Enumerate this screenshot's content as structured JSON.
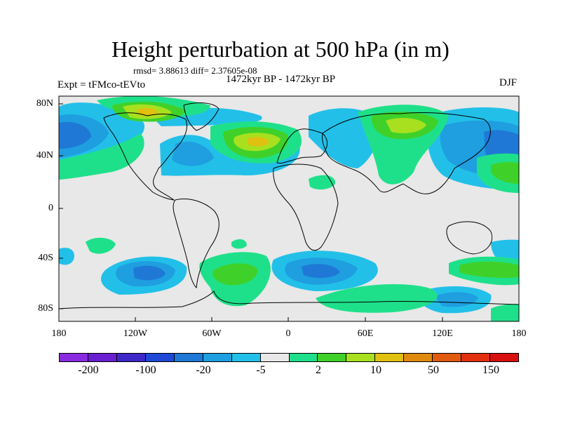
{
  "map": {
    "title": "Height perturbation at 500 hPa (in m)",
    "stats": "rmsd= 3.88613 diff= 2.37605e-08",
    "period": "1472kyr BP - 1472kyr BP",
    "experiment": "Expt = tFMco-tEVto",
    "season": "DJF",
    "lat_labels": [
      "80N",
      "40N",
      "0",
      "40S",
      "80S"
    ],
    "lon_labels": [
      "180",
      "120W",
      "60W",
      "0",
      "60E",
      "120E",
      "180"
    ],
    "land_outline_color": "#000000",
    "background_color": "#e8e8e8"
  },
  "colorbar": {
    "colors": [
      "#8a2be2",
      "#6a1fd0",
      "#3f28c8",
      "#1f49d6",
      "#1f78d6",
      "#1f9ee0",
      "#22c0e8",
      "#e8e8e8",
      "#1fe08a",
      "#3fd12a",
      "#a8e020",
      "#e0c010",
      "#e08a10",
      "#e05a10",
      "#e03010",
      "#d81010"
    ],
    "labels": [
      "-200",
      "-100",
      "-20",
      "-5",
      "2",
      "10",
      "50",
      "150"
    ]
  },
  "fields": {
    "negative_low": "#1f78d6",
    "negative_mid": "#1f9ee0",
    "negative_weak": "#22c0e8",
    "positive_weak": "#1fe08a",
    "positive_mid": "#3fd12a",
    "positive_high": "#a8e020",
    "positive_max": "#e0c010"
  }
}
